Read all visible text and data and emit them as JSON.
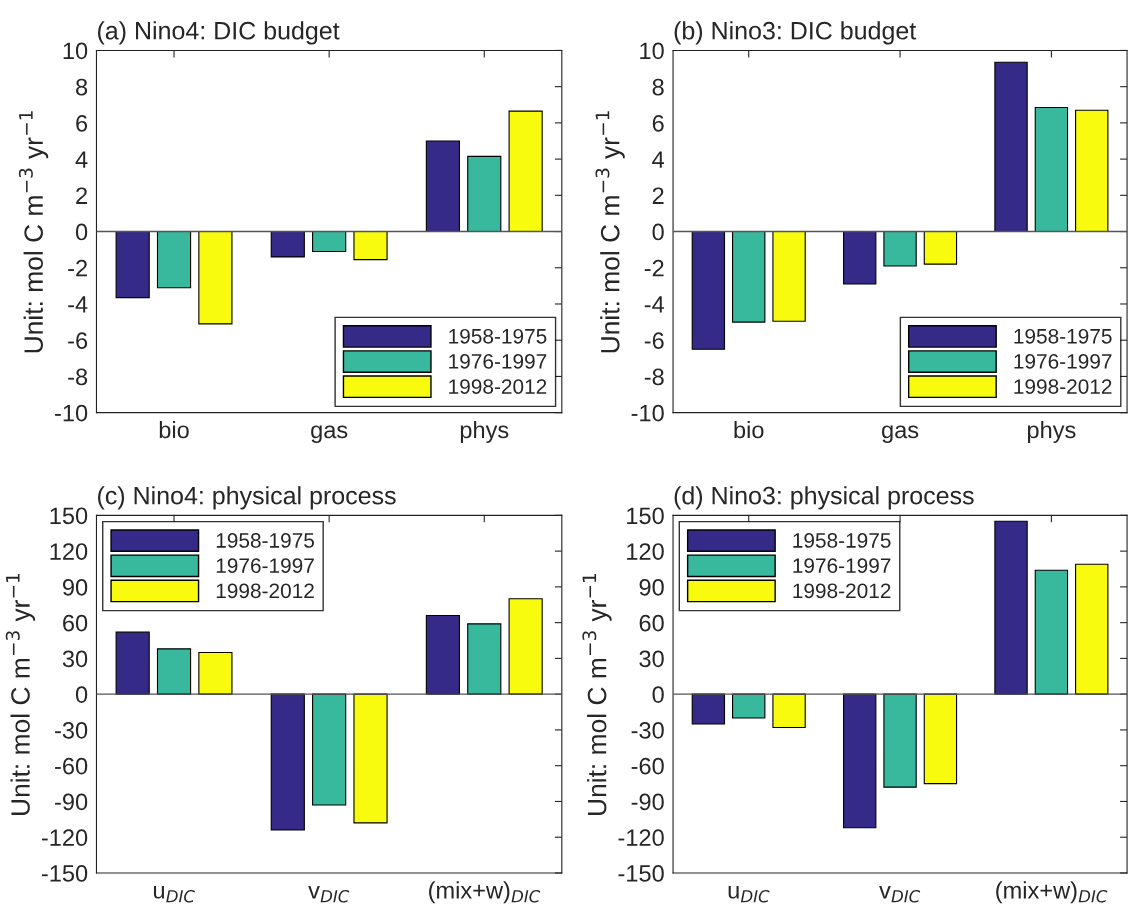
{
  "chart_data": [
    {
      "type": "bar",
      "title": "(a) Nino4: DIC budget",
      "ylabel": "Unit: mol C m$^{−3}$ yr$^{−1}$",
      "categories": [
        "bio",
        "gas",
        "phys"
      ],
      "series": [
        {
          "name": "1958-1975",
          "color": "#352a87",
          "values": [
            -3.65,
            -1.4,
            5.0
          ]
        },
        {
          "name": "1976-1997",
          "color": "#38b99e",
          "values": [
            -3.1,
            -1.1,
            4.15
          ]
        },
        {
          "name": "1998-2012",
          "color": "#f9fb0e",
          "values": [
            -5.1,
            -1.55,
            6.65
          ]
        }
      ],
      "ylim": [
        -10,
        10
      ],
      "yticks": [
        -10,
        -8,
        -6,
        -4,
        -2,
        0,
        2,
        4,
        6,
        8,
        10
      ],
      "legend": "bottom right",
      "grid": false,
      "ref_lines": [
        {
          "axis": "y",
          "value": 0,
          "color": "#555555"
        }
      ]
    },
    {
      "type": "bar",
      "title": "(b) Nino3: DIC budget",
      "ylabel": "Unit: mol C m$^{−3}$ yr$^{−1}$",
      "categories": [
        "bio",
        "gas",
        "phys"
      ],
      "series": [
        {
          "name": "1958-1975",
          "color": "#352a87",
          "values": [
            -6.5,
            -2.9,
            9.35
          ]
        },
        {
          "name": "1976-1997",
          "color": "#38b99e",
          "values": [
            -5.0,
            -1.9,
            6.85
          ]
        },
        {
          "name": "1998-2012",
          "color": "#f9fb0e",
          "values": [
            -4.95,
            -1.8,
            6.7
          ]
        }
      ],
      "ylim": [
        -10,
        10
      ],
      "yticks": [
        -10,
        -8,
        -6,
        -4,
        -2,
        0,
        2,
        4,
        6,
        8,
        10
      ],
      "legend": "bottom right",
      "grid": false,
      "ref_lines": [
        {
          "axis": "y",
          "value": 0,
          "color": "#555555"
        }
      ]
    },
    {
      "type": "bar",
      "title": "(c) Nino4: physical process",
      "ylabel": "Unit: mol C m$^{−3}$ yr$^{−1}$",
      "categories": [
        "u$_{DIC}$",
        "v$_{DIC}$",
        "(mix+w)$_{DIC}$"
      ],
      "series": [
        {
          "name": "1958-1975",
          "color": "#352a87",
          "values": [
            52,
            -114,
            66
          ]
        },
        {
          "name": "1976-1997",
          "color": "#38b99e",
          "values": [
            38,
            -93,
            59
          ]
        },
        {
          "name": "1998-2012",
          "color": "#f9fb0e",
          "values": [
            35,
            -108,
            80
          ]
        }
      ],
      "ylim": [
        -150,
        150
      ],
      "yticks": [
        -150,
        -120,
        -90,
        -60,
        -30,
        0,
        30,
        60,
        90,
        120,
        150
      ],
      "legend": "top left",
      "grid": false,
      "ref_lines": [
        {
          "axis": "y",
          "value": 0,
          "color": "#555555"
        }
      ]
    },
    {
      "type": "bar",
      "title": "(d) Nino3: physical process",
      "ylabel": "Unit: mol C m$^{−3}$ yr$^{−1}$",
      "categories": [
        "u$_{DIC}$",
        "v$_{DIC}$",
        "(mix+w)$_{DIC}$"
      ],
      "series": [
        {
          "name": "1958-1975",
          "color": "#352a87",
          "values": [
            -25,
            -112,
            145
          ]
        },
        {
          "name": "1976-1997",
          "color": "#38b99e",
          "values": [
            -20,
            -78,
            104
          ]
        },
        {
          "name": "1998-2012",
          "color": "#f9fb0e",
          "values": [
            -28,
            -75,
            109
          ]
        }
      ],
      "ylim": [
        -150,
        150
      ],
      "yticks": [
        -150,
        -120,
        -90,
        -60,
        -30,
        0,
        30,
        60,
        90,
        120,
        150
      ],
      "legend": "top left",
      "grid": false,
      "ref_lines": [
        {
          "axis": "y",
          "value": 0,
          "color": "#555555"
        }
      ]
    }
  ]
}
